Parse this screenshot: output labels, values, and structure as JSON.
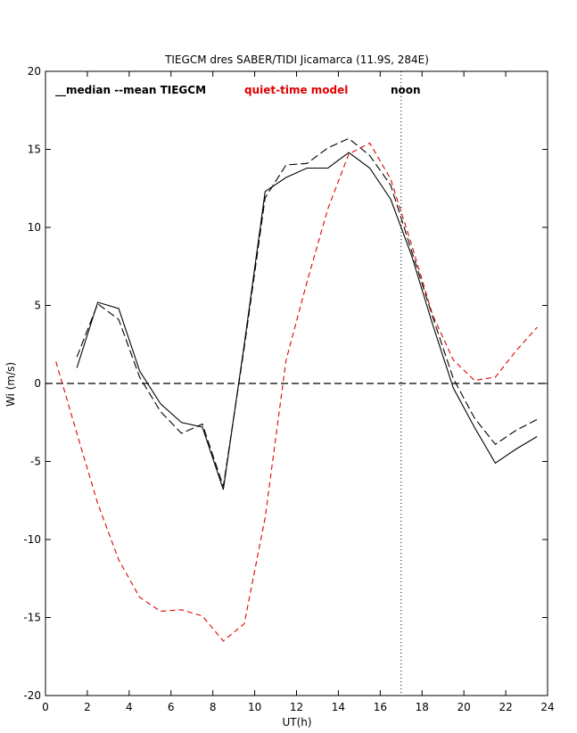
{
  "chart_data": {
    "type": "line",
    "title": "TIEGCM dres SABER/TIDI Jicamarca (11.9S, 284E)",
    "xlabel": "UT(h)",
    "ylabel": "Wi (m/s)",
    "xlim": [
      0,
      24
    ],
    "ylim": [
      -20,
      20
    ],
    "xticks": [
      "0",
      "2",
      "4",
      "6",
      "8",
      "10",
      "12",
      "14",
      "16",
      "18",
      "20",
      "22",
      "24"
    ],
    "yticks": [
      "20",
      "15",
      "10",
      "5",
      "0",
      "-5",
      "-10",
      "-15",
      "-20"
    ],
    "legend": {
      "black": "__median --mean TIEGCM",
      "red": "quiet-time model",
      "marker": "noon"
    },
    "colors": {
      "median": "#000000",
      "mean": "#000000",
      "quiet": "#e00000",
      "red_text": "#e00000"
    },
    "noon_ut": 17,
    "zero_line": 0,
    "series": [
      {
        "style": "solid",
        "x": [
          1.5,
          2.5,
          3.5,
          4.5,
          5.5,
          6.5,
          7.5,
          8.5,
          9.5,
          10.5,
          11.5,
          12.5,
          13.5,
          14.5,
          15.5,
          16.5,
          17.5,
          18.5,
          19.5,
          20.5,
          21.5,
          22.5,
          23.5
        ],
        "y": [
          1.0,
          5.2,
          4.8,
          0.8,
          -1.3,
          -2.5,
          -2.8,
          -6.8,
          2.5,
          12.3,
          13.2,
          13.8,
          13.8,
          14.8,
          13.8,
          11.8,
          8.2,
          3.8,
          -0.3,
          -2.8,
          -5.1,
          -4.2,
          -3.4
        ]
      },
      {
        "style": "dashed",
        "x": [
          1.5,
          2.5,
          3.5,
          4.5,
          5.5,
          6.5,
          7.5,
          8.5,
          9.5,
          10.5,
          11.5,
          12.5,
          13.5,
          14.5,
          15.5,
          16.5,
          17.5,
          18.5,
          19.5,
          20.5,
          21.5,
          22.5,
          23.5
        ],
        "y": [
          1.7,
          5.1,
          4.1,
          0.4,
          -1.8,
          -3.2,
          -2.6,
          -6.6,
          2.3,
          11.9,
          14.0,
          14.1,
          15.1,
          15.7,
          14.6,
          12.7,
          8.5,
          4.3,
          0.3,
          -2.2,
          -3.9,
          -3.0,
          -2.3
        ]
      },
      {
        "style": "dashed-red",
        "x": [
          0.5,
          1.5,
          2.5,
          3.5,
          4.5,
          5.5,
          6.5,
          7.5,
          8.5,
          9.5,
          10.5,
          11.5,
          12.5,
          13.5,
          14.5,
          15.5,
          16.5,
          17.5,
          18.5,
          19.5,
          20.5,
          21.5,
          22.5,
          23.5
        ],
        "y": [
          1.4,
          -3.2,
          -7.7,
          -11.3,
          -13.7,
          -14.6,
          -14.5,
          -14.9,
          -16.5,
          -15.4,
          -8.6,
          1.5,
          6.5,
          11.2,
          14.7,
          15.4,
          13.1,
          8.9,
          4.4,
          1.5,
          0.2,
          0.4,
          2.1,
          3.6
        ]
      }
    ]
  }
}
